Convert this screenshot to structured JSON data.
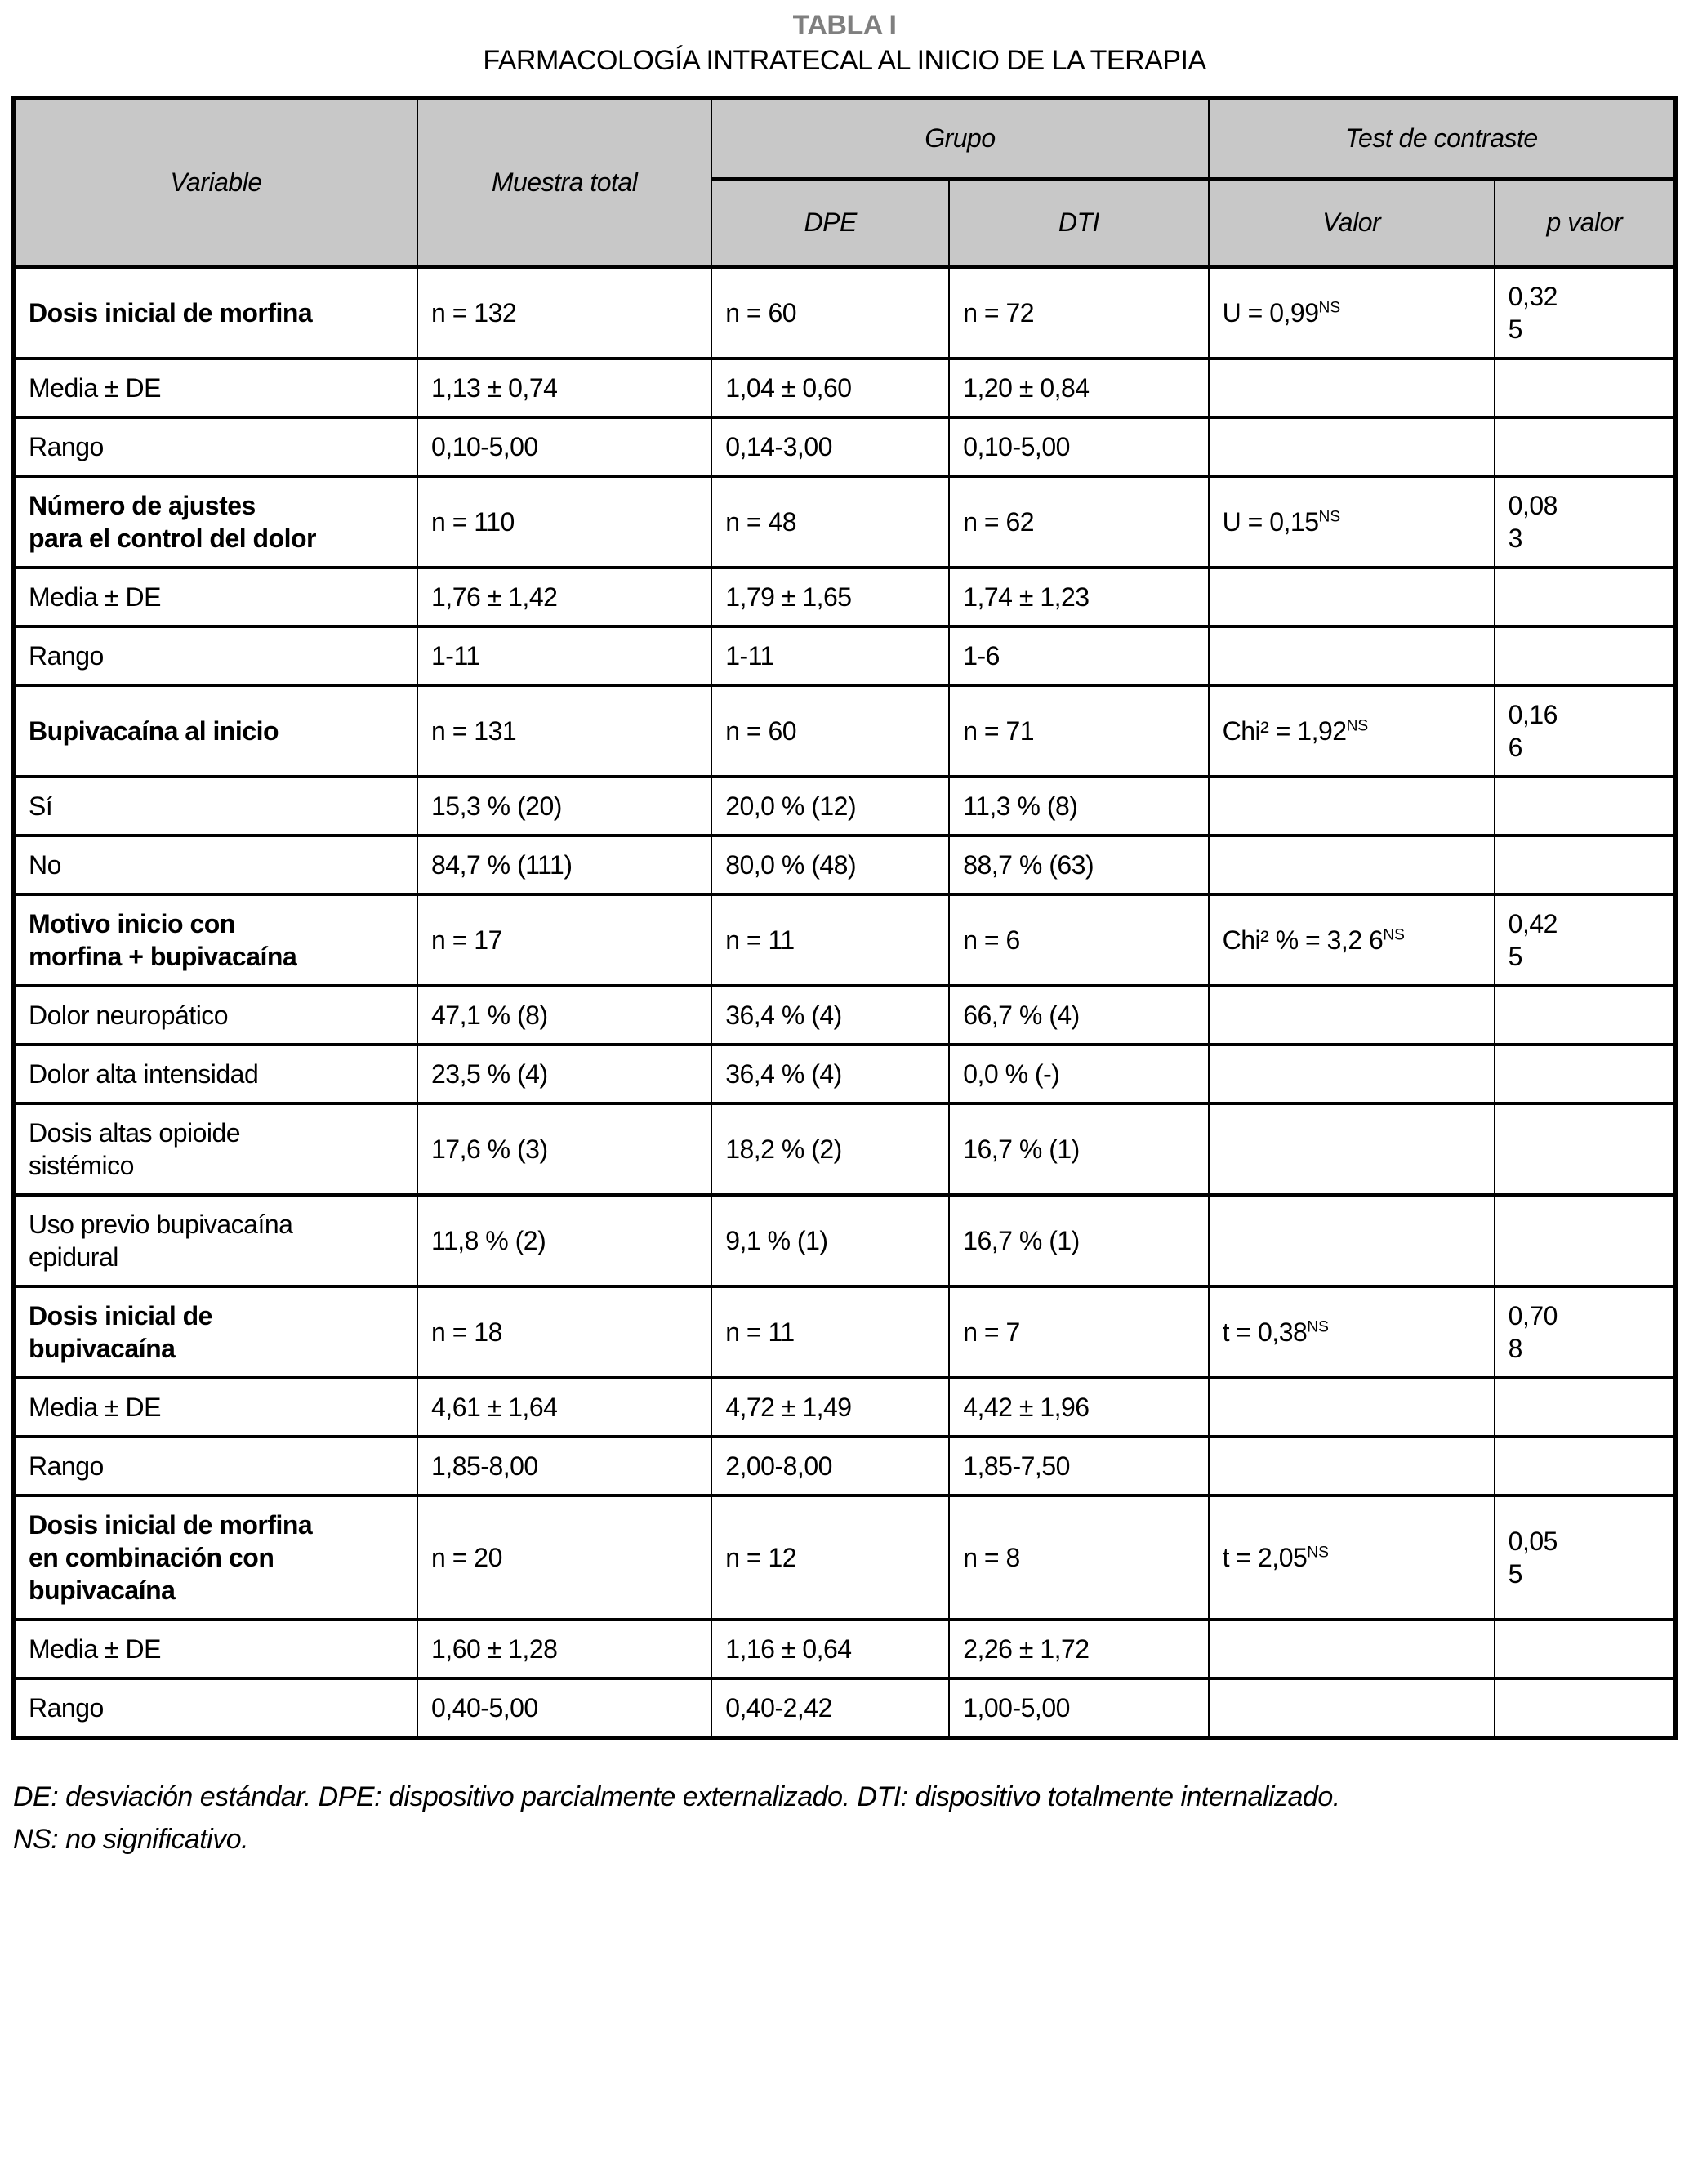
{
  "title": "TABLA I",
  "subtitle": "FARMACOLOGÍA INTRATECAL AL INICIO DE LA TERAPIA",
  "colors": {
    "header_bg": "#c8c8c8",
    "title_gray": "#7f7f7f",
    "border": "#000000"
  },
  "table": {
    "header": {
      "variable": "Variable",
      "muestra_total": "Muestra total",
      "grupo": "Grupo",
      "test_de_contraste": "Test de contraste",
      "dpe": "DPE",
      "dti": "DTI",
      "valor": "Valor",
      "p_valor": "p valor"
    },
    "rows": [
      {
        "label": "Dosis inicial de morfina",
        "bold": true,
        "muestra": "n = 132",
        "dpe": "n = 60",
        "dti": "n = 72",
        "valor": "U = 0,99",
        "valor_sup": "NS",
        "p": "0,32\n5"
      },
      {
        "label": "Media ± DE",
        "bold": false,
        "muestra": "1,13 ± 0,74",
        "dpe": "1,04 ± 0,60",
        "dti": "1,20 ± 0,84",
        "valor": "",
        "valor_sup": "",
        "p": ""
      },
      {
        "label": "Rango",
        "bold": false,
        "muestra": "0,10-5,00",
        "dpe": "0,14-3,00",
        "dti": "0,10-5,00",
        "valor": "",
        "valor_sup": "",
        "p": ""
      },
      {
        "label": "Número de ajustes\npara el control del dolor",
        "bold": true,
        "muestra": "n = 110",
        "dpe": "n = 48",
        "dti": "n = 62",
        "valor": "U = 0,15",
        "valor_sup": "NS",
        "p": "0,08\n3"
      },
      {
        "label": "Media ± DE",
        "bold": false,
        "muestra": "1,76 ± 1,42",
        "dpe": "1,79 ± 1,65",
        "dti": "1,74 ± 1,23",
        "valor": "",
        "valor_sup": "",
        "p": ""
      },
      {
        "label": "Rango",
        "bold": false,
        "muestra": "1-11",
        "dpe": "1-11",
        "dti": "1-6",
        "valor": "",
        "valor_sup": "",
        "p": ""
      },
      {
        "label": "Bupivacaína al inicio",
        "bold": true,
        "muestra": "n = 131",
        "dpe": "n = 60",
        "dti": "n = 71",
        "valor": "Chi² = 1,92",
        "valor_sup": "NS",
        "p": "0,16\n6"
      },
      {
        "label": "Sí",
        "bold": false,
        "muestra": "15,3 % (20)",
        "dpe": "20,0 % (12)",
        "dti": "11,3 % (8)",
        "valor": "",
        "valor_sup": "",
        "p": ""
      },
      {
        "label": "No",
        "bold": false,
        "muestra": "84,7 % (111)",
        "dpe": "80,0 % (48)",
        "dti": "88,7 % (63)",
        "valor": "",
        "valor_sup": "",
        "p": ""
      },
      {
        "label": "Motivo inicio con\nmorfina + bupivacaína",
        "bold": true,
        "muestra": "n = 17",
        "dpe": "n = 11",
        "dti": "n = 6",
        "valor": "Chi² % = 3,2 6",
        "valor_sup": "NS",
        "p": "0,42\n5"
      },
      {
        "label": "Dolor neuropático",
        "bold": false,
        "muestra": "47,1 % (8)",
        "dpe": "36,4 % (4)",
        "dti": "66,7 % (4)",
        "valor": "",
        "valor_sup": "",
        "p": ""
      },
      {
        "label": "Dolor alta intensidad",
        "bold": false,
        "muestra": "23,5 % (4)",
        "dpe": "36,4 % (4)",
        "dti": "0,0 % (-)",
        "valor": "",
        "valor_sup": "",
        "p": ""
      },
      {
        "label": "Dosis altas opioide\nsistémico",
        "bold": false,
        "muestra": "17,6 % (3)",
        "dpe": "18,2 % (2)",
        "dti": "16,7 % (1)",
        "valor": "",
        "valor_sup": "",
        "p": ""
      },
      {
        "label": "Uso previo bupivacaína\nepidural",
        "bold": false,
        "muestra": "11,8 % (2)",
        "dpe": "9,1 % (1)",
        "dti": "16,7 % (1)",
        "valor": "",
        "valor_sup": "",
        "p": ""
      },
      {
        "label": "Dosis inicial de\nbupivacaína",
        "bold": true,
        "muestra": "n = 18",
        "dpe": "n = 11",
        "dti": "n = 7",
        "valor": "t = 0,38",
        "valor_sup": "NS",
        "p": "0,70\n8"
      },
      {
        "label": "Media ± DE",
        "bold": false,
        "muestra": "4,61 ± 1,64",
        "dpe": "4,72 ± 1,49",
        "dti": "4,42 ± 1,96",
        "valor": "",
        "valor_sup": "",
        "p": ""
      },
      {
        "label": "Rango",
        "bold": false,
        "muestra": "1,85-8,00",
        "dpe": "2,00-8,00",
        "dti": "1,85-7,50",
        "valor": "",
        "valor_sup": "",
        "p": ""
      },
      {
        "label": "Dosis inicial de morfina\nen combinación con\nbupivacaína",
        "bold": true,
        "muestra": "n = 20",
        "dpe": "n = 12",
        "dti": "n = 8",
        "valor": "t = 2,05",
        "valor_sup": "NS",
        "p": "0,05\n5"
      },
      {
        "label": "Media ± DE",
        "bold": false,
        "muestra": "1,60 ± 1,28",
        "dpe": "1,16 ± 0,64",
        "dti": "2,26 ± 1,72",
        "valor": "",
        "valor_sup": "",
        "p": ""
      },
      {
        "label": "Rango",
        "bold": false,
        "muestra": "0,40-5,00",
        "dpe": "0,40-2,42",
        "dti": "1,00-5,00",
        "valor": "",
        "valor_sup": "",
        "p": ""
      }
    ]
  },
  "footnote": {
    "lines": [
      "DE: desviación estándar. DPE: dispositivo parcialmente externalizado. DTI: dispositivo totalmente internalizado.",
      "NS: no significativo."
    ]
  }
}
